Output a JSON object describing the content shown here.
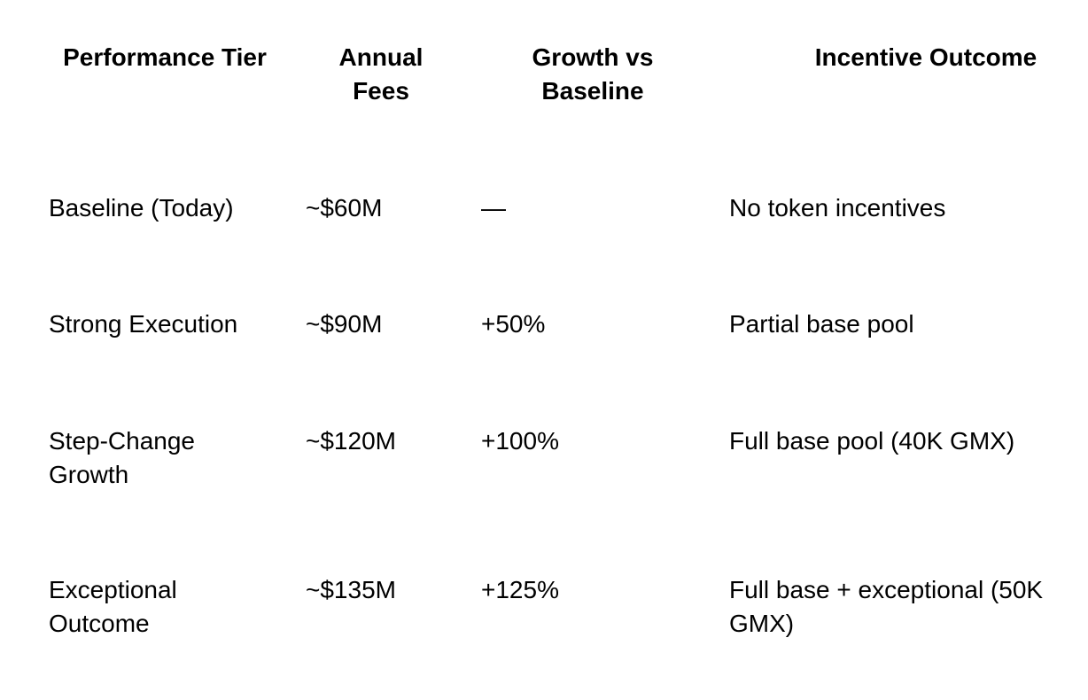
{
  "colors": {
    "background": "#ffffff",
    "text": "#000000"
  },
  "table": {
    "columns": [
      {
        "label": "Performance Tier"
      },
      {
        "label": "Annual\nFees"
      },
      {
        "label": "Growth vs\nBaseline"
      },
      {
        "label": "Incentive Outcome"
      }
    ],
    "rows": [
      {
        "tier": "Baseline (Today)",
        "annual_fees": "~$60M",
        "growth_vs_baseline": "—",
        "incentive_outcome": "No token incentives"
      },
      {
        "tier": "Strong Execution",
        "annual_fees": "~$90M",
        "growth_vs_baseline": "+50%",
        "incentive_outcome": "Partial base pool"
      },
      {
        "tier": "Step-Change\nGrowth",
        "annual_fees": "~$120M",
        "growth_vs_baseline": "+100%",
        "incentive_outcome": "Full base pool (40K GMX)"
      },
      {
        "tier": "Exceptional\nOutcome",
        "annual_fees": "~$135M",
        "growth_vs_baseline": "+125%",
        "incentive_outcome": "Full base + exceptional (50K\nGMX)"
      }
    ]
  }
}
